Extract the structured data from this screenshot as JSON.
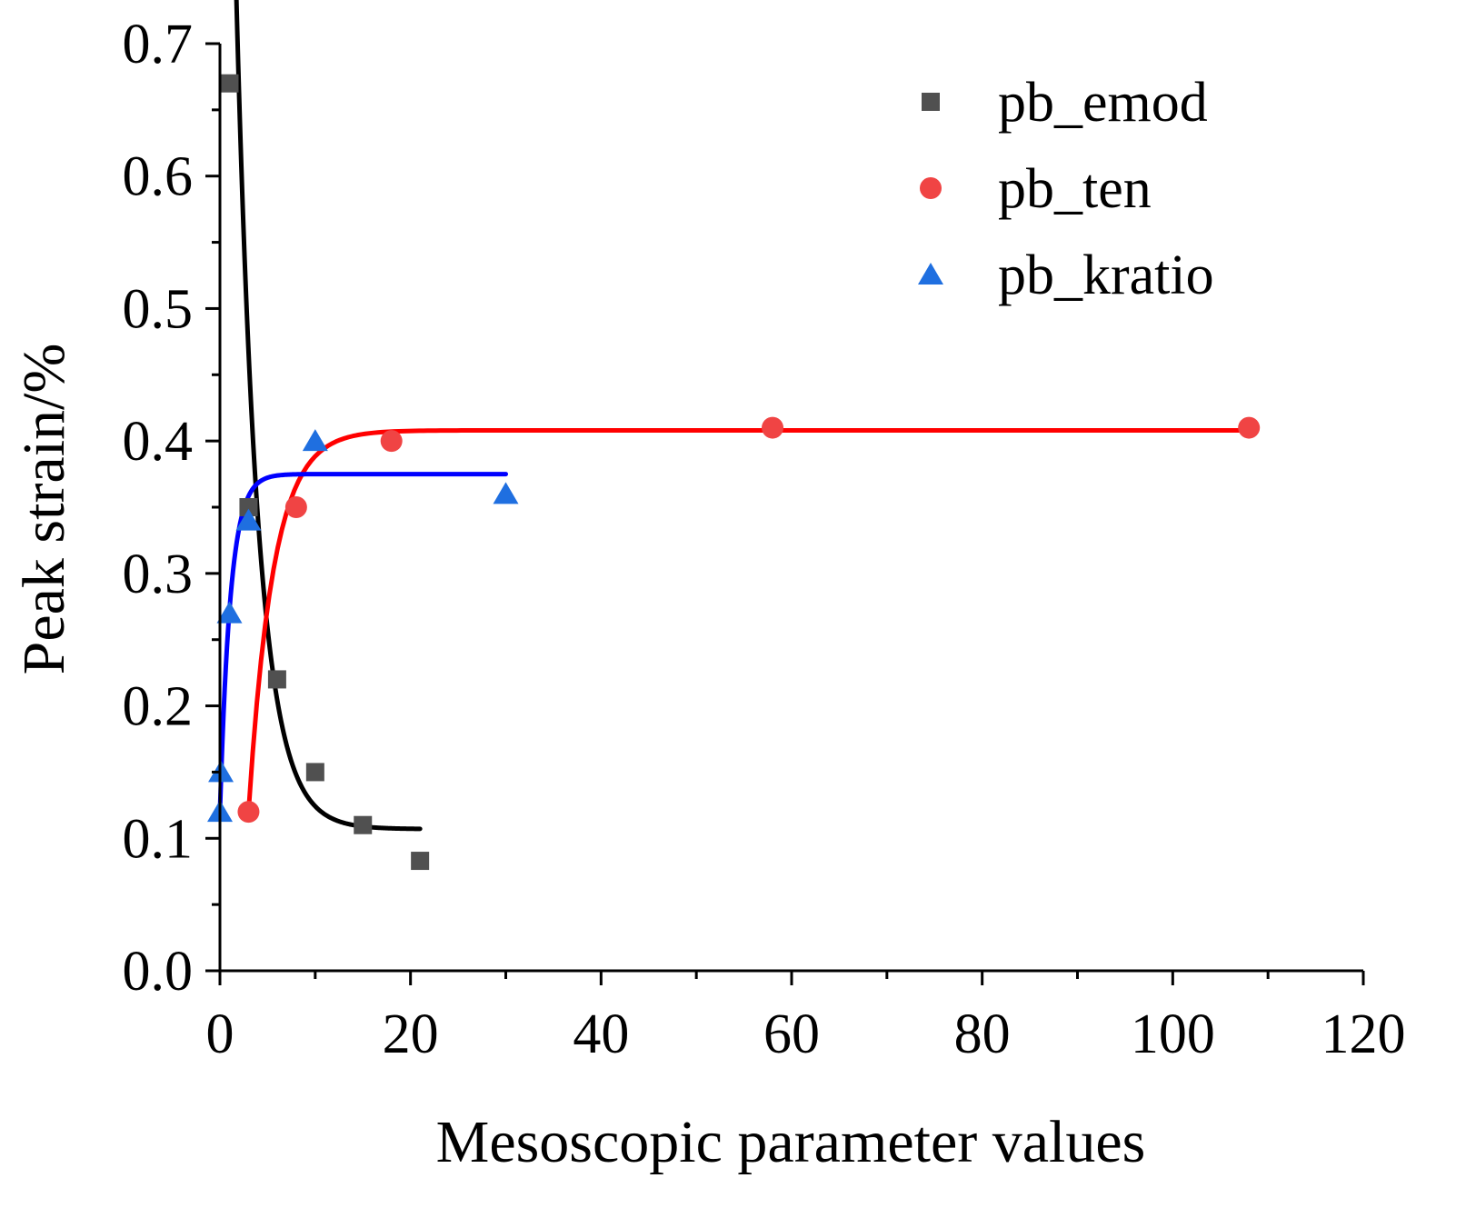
{
  "chart_data": {
    "type": "scatter",
    "title": "",
    "xlabel": "Mesoscopic parameter values",
    "ylabel": "Peak strain/%",
    "xlim": [
      0,
      120
    ],
    "ylim": [
      0.0,
      0.7
    ],
    "x_ticks": [
      "0",
      "20",
      "40",
      "60",
      "80",
      "100",
      "120"
    ],
    "x_tick_values": [
      0,
      20,
      40,
      60,
      80,
      100,
      120
    ],
    "y_ticks": [
      "0.0",
      "0.1",
      "0.2",
      "0.3",
      "0.4",
      "0.5",
      "0.6",
      "0.7"
    ],
    "y_tick_values": [
      0.0,
      0.1,
      0.2,
      0.3,
      0.4,
      0.5,
      0.6,
      0.7
    ],
    "grid": false,
    "legend_position": "top-right",
    "series": [
      {
        "name": "pb_emod",
        "marker": "square",
        "color": "#505050",
        "line_color": "#000000",
        "x": [
          1,
          3,
          6,
          10,
          15,
          21
        ],
        "y": [
          0.67,
          0.35,
          0.22,
          0.15,
          0.11,
          0.083
        ],
        "fit": {
          "model": "exp_decay",
          "y0": 0.107,
          "A": 0.86,
          "t": 2.3,
          "x_start": 1,
          "x_end": 21
        }
      },
      {
        "name": "pb_ten",
        "marker": "circle",
        "color": "#f04444",
        "line_color": "#ff0000",
        "x": [
          3,
          8,
          18,
          58,
          108
        ],
        "y": [
          0.12,
          0.35,
          0.4,
          0.41,
          0.41
        ],
        "fit": {
          "model": "exp_rise",
          "ymax": 0.408,
          "x0": 3,
          "A": 0.288,
          "t": 2.6,
          "x_start": 3,
          "x_end": 108
        }
      },
      {
        "name": "pb_kratio",
        "marker": "triangle",
        "color": "#1f6fe0",
        "line_color": "#0000ff",
        "x": [
          0,
          0.1,
          1,
          3,
          10,
          30
        ],
        "y": [
          0.12,
          0.15,
          0.27,
          0.34,
          0.4,
          0.36
        ],
        "fit": {
          "model": "exp_rise",
          "ymax": 0.375,
          "x0": 0,
          "A": 0.255,
          "t": 1.1,
          "x_start": 0,
          "x_end": 30
        }
      }
    ]
  }
}
